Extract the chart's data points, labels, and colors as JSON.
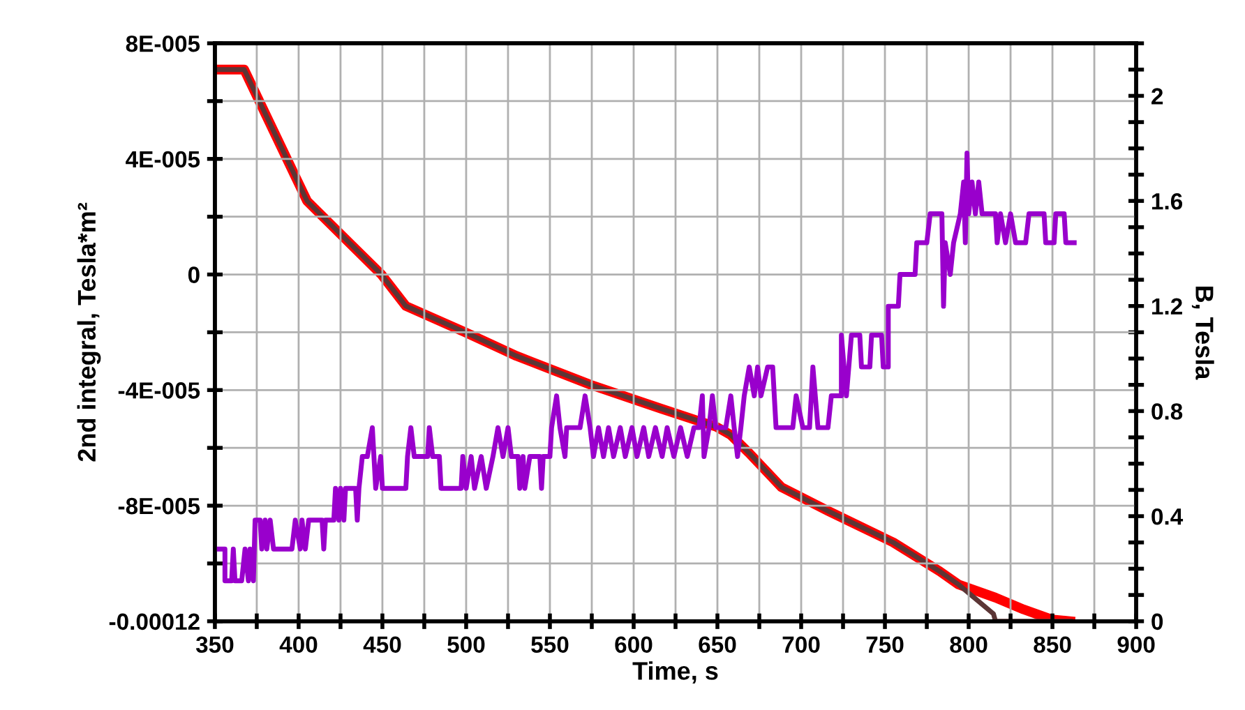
{
  "chart_data": {
    "type": "line",
    "xlabel": "Time, s",
    "ylabel": "2nd integral, Tesla*m²",
    "y2label": "B, Tesla",
    "grid": true,
    "legend": false,
    "marker": "none",
    "line_style": "solid",
    "xlim": [
      350,
      900
    ],
    "xticks": [
      350,
      {
        "value": 375,
        "label": null
      },
      400,
      {
        "value": 425,
        "label": null
      },
      450,
      {
        "value": 475,
        "label": null
      },
      500,
      {
        "value": 525,
        "label": null
      },
      550,
      {
        "value": 575,
        "label": null
      },
      600,
      {
        "value": 625,
        "label": null
      },
      650,
      {
        "value": 675,
        "label": null
      },
      700,
      {
        "value": 725,
        "label": null
      },
      750,
      {
        "value": 775,
        "label": null
      },
      800,
      {
        "value": 825,
        "label": null
      },
      850,
      {
        "value": 875,
        "label": null
      },
      900
    ],
    "ylim": [
      -0.00012,
      8e-05
    ],
    "yticks": [
      {
        "value": -0.00012,
        "label": "-0.00012"
      },
      {
        "value": -0.0001,
        "label": null
      },
      {
        "value": -8e-05,
        "label": "-8E-005"
      },
      {
        "value": -6e-05,
        "label": null
      },
      {
        "value": -4e-05,
        "label": "-4E-005"
      },
      {
        "value": -2e-05,
        "label": null
      },
      0,
      {
        "value": 2e-05,
        "label": null
      },
      {
        "value": 4e-05,
        "label": "4E-005"
      },
      {
        "value": 6e-05,
        "label": null
      },
      {
        "value": 8e-05,
        "label": "8E-005"
      }
    ],
    "y2lim": [
      0,
      2.2
    ],
    "y2ticks": [
      0,
      {
        "value": 0.1,
        "label": null
      },
      {
        "value": 0.2,
        "label": null
      },
      {
        "value": 0.3,
        "label": null
      },
      0.4,
      {
        "value": 0.5,
        "label": null
      },
      {
        "value": 0.6,
        "label": null
      },
      {
        "value": 0.7,
        "label": null
      },
      0.8,
      {
        "value": 0.9,
        "label": null
      },
      {
        "value": 1.0,
        "label": null
      },
      {
        "value": 1.1,
        "label": null
      },
      1.2,
      {
        "value": 1.3,
        "label": null
      },
      {
        "value": 1.4,
        "label": null
      },
      {
        "value": 1.5,
        "label": null
      },
      1.6,
      {
        "value": 1.7,
        "label": null
      },
      {
        "value": 1.8,
        "label": null
      },
      {
        "value": 1.9,
        "label": null
      },
      2,
      {
        "value": 2.1,
        "label": null
      },
      {
        "value": 2.2,
        "label": null
      }
    ],
    "series": [
      {
        "color": "#ff0000",
        "axis": "y2",
        "x": [
          350,
          367.5,
          405,
          449.4,
          464,
          499.4,
          530,
          574.4,
          616,
          649.4,
          657.8,
          669,
          688.3,
          716,
          755,
          782.7,
          793.9,
          816,
          832.8,
          849.4,
          860.6
        ],
        "values": [
          2.1,
          2.1,
          1.6,
          1.32,
          1.2,
          1.1,
          1.01,
          0.9,
          0.81,
          0.74,
          0.71,
          0.64,
          0.51,
          0.42,
          0.3,
          0.19,
          0.14,
          0.09,
          0.045,
          0.007,
          0
        ]
      },
      {
        "color": "#5c3636",
        "axis": "y2",
        "x": [
          350,
          367.5,
          405,
          449.4,
          464,
          499.4,
          530,
          574.4,
          616,
          649.4,
          657.8,
          669,
          688.3,
          716,
          755,
          782.7,
          793.9,
          814.8,
          816,
          860.6
        ],
        "values": [
          2.1,
          2.1,
          1.6,
          1.32,
          1.2,
          1.1,
          1.01,
          0.9,
          0.81,
          0.74,
          0.71,
          0.64,
          0.51,
          0.42,
          0.3,
          0.19,
          0.14,
          0.028,
          0,
          0
        ]
      },
      {
        "color": "#9900cc",
        "axis": "y",
        "x": [
          350,
          356,
          356,
          360,
          361,
          362,
          366,
          368,
          370,
          371,
          373,
          374,
          377,
          378,
          380,
          381,
          383,
          385,
          396,
          398,
          401,
          402,
          404,
          406,
          414,
          415,
          416,
          421,
          422,
          424,
          425,
          427,
          428,
          434,
          435,
          436,
          438,
          441,
          444,
          446,
          449,
          450,
          464,
          465,
          467,
          469,
          477,
          478,
          480,
          484,
          485,
          490,
          497,
          498,
          500,
          503,
          505,
          509,
          512,
          516,
          519,
          522,
          525,
          527,
          531,
          532,
          534,
          535,
          538,
          544,
          545,
          546,
          550,
          551,
          554,
          556,
          559,
          560,
          568,
          571,
          574,
          576,
          579,
          582,
          585,
          588,
          592,
          595,
          599,
          602,
          606,
          609,
          613,
          617,
          620,
          624,
          628,
          632,
          636,
          639,
          641,
          642,
          645,
          647,
          649,
          655,
          658,
          660,
          662,
          664,
          666,
          669,
          672,
          674,
          676,
          680,
          683,
          685,
          695,
          697,
          701,
          705,
          707,
          710,
          716,
          718,
          724,
          724,
          727,
          730,
          735,
          736,
          741,
          742,
          748,
          749,
          752,
          752,
          758,
          759,
          768,
          769,
          775,
          777,
          784,
          785,
          786,
          789,
          791,
          795,
          797,
          798,
          799,
          800,
          802,
          804,
          806,
          808,
          816,
          817,
          819,
          822,
          825,
          828,
          834,
          836,
          845,
          846,
          851,
          852,
          857,
          858,
          863
        ],
        "values": [
          -9.5e-05,
          -9.5e-05,
          -0.000106,
          -0.000106,
          -9.5e-05,
          -0.000106,
          -0.000106,
          -9.5e-05,
          -0.000106,
          -9.5e-05,
          -0.000106,
          -8.5e-05,
          -8.5e-05,
          -9.5e-05,
          -8.5e-05,
          -9.5e-05,
          -8.5e-05,
          -9.5e-05,
          -9.5e-05,
          -8.5e-05,
          -9.5e-05,
          -8.5e-05,
          -9.5e-05,
          -8.5e-05,
          -8.5e-05,
          -9.5e-05,
          -8.5e-05,
          -8.5e-05,
          -7.4e-05,
          -8.5e-05,
          -7.4e-05,
          -8.5e-05,
          -7.4e-05,
          -7.4e-05,
          -8.5e-05,
          -7.4e-05,
          -6.3e-05,
          -6.3e-05,
          -5.3e-05,
          -7.4e-05,
          -6.3e-05,
          -7.4e-05,
          -7.4e-05,
          -6.3e-05,
          -5.3e-05,
          -6.3e-05,
          -6.3e-05,
          -5.3e-05,
          -6.3e-05,
          -6.3e-05,
          -7.4e-05,
          -7.4e-05,
          -7.4e-05,
          -6.3e-05,
          -7.4e-05,
          -6.3e-05,
          -7.4e-05,
          -6.3e-05,
          -7.4e-05,
          -6.3e-05,
          -5.3e-05,
          -6.3e-05,
          -5.3e-05,
          -6.3e-05,
          -6.3e-05,
          -7.4e-05,
          -6.3e-05,
          -7.4e-05,
          -6.3e-05,
          -6.3e-05,
          -7.4e-05,
          -6.3e-05,
          -6.3e-05,
          -5.3e-05,
          -4.2e-05,
          -5.3e-05,
          -6.3e-05,
          -5.3e-05,
          -5.3e-05,
          -4.2e-05,
          -5.3e-05,
          -6.3e-05,
          -5.3e-05,
          -6.3e-05,
          -5.3e-05,
          -6.3e-05,
          -5.3e-05,
          -6.3e-05,
          -5.3e-05,
          -6.3e-05,
          -5.3e-05,
          -6.3e-05,
          -5.3e-05,
          -6.3e-05,
          -5.3e-05,
          -6.3e-05,
          -5.3e-05,
          -6.3e-05,
          -5.3e-05,
          -5.3e-05,
          -4.2e-05,
          -6.3e-05,
          -5.3e-05,
          -4.2e-05,
          -5.3e-05,
          -5.3e-05,
          -4.2e-05,
          -5.3e-05,
          -6.3e-05,
          -5.3e-05,
          -4.2e-05,
          -3.2e-05,
          -4.2e-05,
          -3.2e-05,
          -4.2e-05,
          -3.2e-05,
          -3.2e-05,
          -5.3e-05,
          -5.3e-05,
          -4.2e-05,
          -5.3e-05,
          -5.3e-05,
          -3.2e-05,
          -5.3e-05,
          -5.3e-05,
          -4.2e-05,
          -4.2e-05,
          -2.1e-05,
          -4.2e-05,
          -2.1e-05,
          -2.1e-05,
          -3.2e-05,
          -3.2e-05,
          -2.1e-05,
          -2.1e-05,
          -3.2e-05,
          -3.2e-05,
          -1.1e-05,
          -1.1e-05,
          0,
          0,
          1.1e-05,
          1.1e-05,
          2.1e-05,
          2.1e-05,
          -1.1e-05,
          1.1e-05,
          0,
          1.1e-05,
          2.1e-05,
          3.2e-05,
          1.1e-05,
          4.2e-05,
          2.1e-05,
          3.2e-05,
          2.1e-05,
          3.2e-05,
          2.1e-05,
          2.1e-05,
          1.1e-05,
          2.1e-05,
          1.1e-05,
          2.1e-05,
          1.1e-05,
          1.1e-05,
          2.1e-05,
          2.1e-05,
          1.1e-05,
          1.1e-05,
          2.1e-05,
          2.1e-05,
          1.1e-05,
          1.1e-05
        ]
      }
    ]
  }
}
